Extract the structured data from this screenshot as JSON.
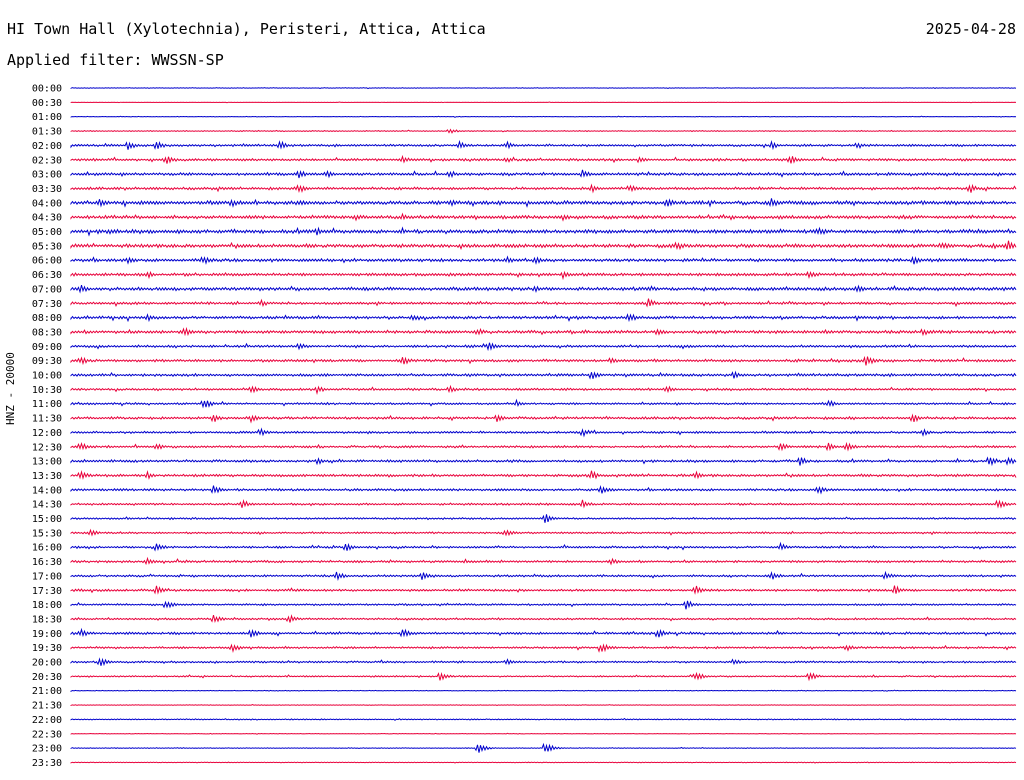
{
  "header": {
    "station": "HI Town Hall (Xylotechnia), Peristeri, Attica, Attica",
    "date": "2025-04-28",
    "filter": "Applied filter: WWSSN-SP"
  },
  "channel_label": "HNZ - 20000",
  "colors": {
    "even_hour": "#0000cc",
    "half_hour": "#e8003a"
  },
  "chart_data": {
    "type": "line",
    "title": "HI Town Hall (Xylotechnia), Peristeri, Attica, Attica",
    "ylabel": "HNZ - 20000",
    "rows": [
      "00:00",
      "00:30",
      "01:00",
      "01:30",
      "02:00",
      "02:30",
      "03:00",
      "03:30",
      "04:00",
      "04:30",
      "05:00",
      "05:30",
      "06:00",
      "06:30",
      "07:00",
      "07:30",
      "08:00",
      "08:30",
      "09:00",
      "09:30",
      "10:00",
      "10:30",
      "11:00",
      "11:30",
      "12:00",
      "12:30",
      "13:00",
      "13:30",
      "14:00",
      "14:30",
      "15:00",
      "15:30",
      "16:00",
      "16:30",
      "17:00",
      "17:30",
      "18:00",
      "18:30",
      "19:00",
      "19:30",
      "20:00",
      "20:30",
      "21:00",
      "21:30",
      "22:00",
      "22:30",
      "23:00",
      "23:30"
    ],
    "noise_level": [
      0.3,
      0.2,
      0.3,
      0.5,
      1.2,
      1.3,
      1.5,
      1.4,
      2.0,
      1.8,
      2.0,
      1.9,
      1.6,
      1.6,
      1.8,
      1.3,
      1.5,
      1.6,
      1.3,
      1.4,
      1.4,
      1.2,
      1.1,
      1.3,
      1.2,
      1.2,
      1.3,
      1.4,
      1.2,
      1.1,
      1.0,
      1.0,
      1.1,
      1.2,
      1.1,
      1.2,
      1.0,
      1.0,
      1.3,
      1.1,
      1.0,
      0.8,
      0.4,
      0.3,
      0.6,
      0.3,
      0.4,
      0.4
    ],
    "events": [
      [],
      [],
      [],
      [
        [
          0.4,
          3
        ]
      ],
      [
        [
          0.06,
          5
        ],
        [
          0.09,
          5
        ],
        [
          0.22,
          5
        ],
        [
          0.41,
          4
        ],
        [
          0.46,
          4
        ],
        [
          0.74,
          4
        ],
        [
          0.83,
          4
        ]
      ],
      [
        [
          0.1,
          5
        ],
        [
          0.35,
          4
        ],
        [
          0.46,
          3
        ],
        [
          0.6,
          4
        ],
        [
          0.76,
          5
        ]
      ],
      [
        [
          0.24,
          5
        ],
        [
          0.27,
          5
        ],
        [
          0.4,
          4
        ],
        [
          0.54,
          5
        ]
      ],
      [
        [
          0.24,
          5
        ],
        [
          0.55,
          5
        ],
        [
          0.59,
          4
        ],
        [
          0.95,
          5
        ]
      ],
      [
        [
          0.03,
          4
        ],
        [
          0.17,
          4
        ],
        [
          0.4,
          4
        ],
        [
          0.63,
          5
        ],
        [
          0.74,
          5
        ]
      ],
      [
        [
          0.3,
          4
        ],
        [
          0.35,
          4
        ],
        [
          0.52,
          4
        ]
      ],
      [
        [
          0.04,
          4
        ],
        [
          0.26,
          4
        ],
        [
          0.79,
          5
        ]
      ],
      [
        [
          0.64,
          5
        ],
        [
          0.92,
          5
        ],
        [
          0.99,
          6
        ]
      ],
      [
        [
          0.06,
          4
        ],
        [
          0.14,
          5
        ],
        [
          0.46,
          4
        ],
        [
          0.49,
          5
        ],
        [
          0.89,
          5
        ]
      ],
      [
        [
          0.08,
          4
        ],
        [
          0.52,
          4
        ],
        [
          0.78,
          4
        ]
      ],
      [
        [
          0.01,
          5
        ],
        [
          0.49,
          4
        ],
        [
          0.83,
          5
        ]
      ],
      [
        [
          0.2,
          4
        ],
        [
          0.61,
          5
        ]
      ],
      [
        [
          0.08,
          4
        ],
        [
          0.36,
          4
        ],
        [
          0.59,
          5
        ]
      ],
      [
        [
          0.12,
          5
        ],
        [
          0.43,
          4
        ],
        [
          0.62,
          4
        ],
        [
          0.9,
          4
        ]
      ],
      [
        [
          0.24,
          4
        ],
        [
          0.44,
          5
        ]
      ],
      [
        [
          0.01,
          5
        ],
        [
          0.35,
          5
        ],
        [
          0.57,
          4
        ],
        [
          0.84,
          6
        ]
      ],
      [
        [
          0.55,
          5
        ],
        [
          0.7,
          4
        ]
      ],
      [
        [
          0.19,
          4
        ],
        [
          0.26,
          4
        ],
        [
          0.4,
          4
        ],
        [
          0.63,
          4
        ]
      ],
      [
        [
          0.14,
          6
        ],
        [
          0.47,
          4
        ],
        [
          0.8,
          4
        ]
      ],
      [
        [
          0.15,
          5
        ],
        [
          0.19,
          4
        ],
        [
          0.45,
          4
        ],
        [
          0.89,
          5
        ]
      ],
      [
        [
          0.2,
          4
        ],
        [
          0.54,
          5
        ],
        [
          0.9,
          4
        ]
      ],
      [
        [
          0.01,
          5
        ],
        [
          0.09,
          4
        ],
        [
          0.75,
          5
        ],
        [
          0.8,
          5
        ],
        [
          0.82,
          5
        ]
      ],
      [
        [
          0.26,
          4
        ],
        [
          0.77,
          5
        ],
        [
          0.97,
          6
        ],
        [
          0.99,
          5
        ]
      ],
      [
        [
          0.01,
          5
        ],
        [
          0.08,
          4
        ],
        [
          0.55,
          5
        ],
        [
          0.66,
          4
        ]
      ],
      [
        [
          0.15,
          5
        ],
        [
          0.56,
          5
        ],
        [
          0.79,
          5
        ]
      ],
      [
        [
          0.18,
          5
        ],
        [
          0.54,
          5
        ],
        [
          0.98,
          5
        ]
      ],
      [
        [
          0.5,
          6
        ]
      ],
      [
        [
          0.02,
          4
        ],
        [
          0.46,
          4
        ]
      ],
      [
        [
          0.09,
          5
        ],
        [
          0.29,
          5
        ],
        [
          0.75,
          4
        ]
      ],
      [
        [
          0.08,
          4
        ],
        [
          0.57,
          4
        ]
      ],
      [
        [
          0.28,
          5
        ],
        [
          0.37,
          5
        ],
        [
          0.74,
          5
        ],
        [
          0.86,
          5
        ]
      ],
      [
        [
          0.09,
          5
        ],
        [
          0.66,
          5
        ],
        [
          0.87,
          5
        ]
      ],
      [
        [
          0.1,
          5
        ],
        [
          0.65,
          5
        ]
      ],
      [
        [
          0.15,
          5
        ],
        [
          0.23,
          5
        ]
      ],
      [
        [
          0.01,
          5
        ],
        [
          0.19,
          5
        ],
        [
          0.35,
          5
        ],
        [
          0.62,
          5
        ]
      ],
      [
        [
          0.17,
          5
        ],
        [
          0.56,
          6
        ],
        [
          0.82,
          4
        ]
      ],
      [
        [
          0.03,
          5
        ],
        [
          0.46,
          4
        ],
        [
          0.7,
          4
        ]
      ],
      [
        [
          0.39,
          5
        ],
        [
          0.66,
          5
        ],
        [
          0.78,
          5
        ]
      ],
      [],
      [],
      [],
      [],
      [
        [
          0.43,
          6
        ],
        [
          0.5,
          7
        ]
      ],
      []
    ]
  }
}
